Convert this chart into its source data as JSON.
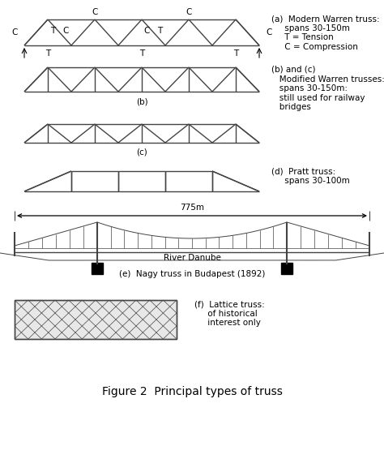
{
  "bg_color": "#ffffff",
  "line_color": "#444444",
  "text_color": "#000000",
  "fig_title": "Figure 2  Principal types of truss",
  "title_fontsize": 10,
  "annotation_fontsize": 7.5,
  "sections": {
    "a_label": "(a)  Modern Warren truss:\n     spans 30-150m\n     T = Tension\n     C = Compression",
    "b_label": "(b) and (c)\n   Modified Warren trusses:\n   spans 30-150m:\n   still used for railway\n   bridges",
    "c_label": "(c)",
    "d_label": "(d)  Pratt truss:\n     spans 30-100m",
    "e_label": "(e)  Nagy truss in Budapest (1892)",
    "f_label": "(f)  Lattice truss:\n     of historical\n     interest only",
    "b_tag": "(b)",
    "span_label": "775m",
    "river_label": "River Danube"
  }
}
